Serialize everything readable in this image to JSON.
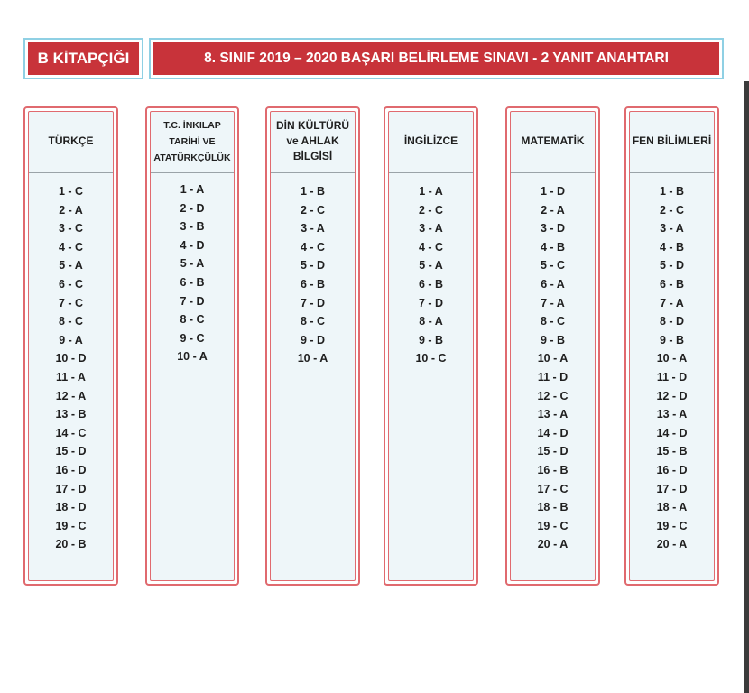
{
  "booklet_label": "B KİTAPÇIĞI",
  "exam_title": "8. SINIF 2019 – 2020  BAŞARI BELİRLEME SINAVI - 2 YANIT ANAHTARI",
  "colors": {
    "header_red": "#c8333a",
    "header_outline": "#8fd0e4",
    "column_border": "#e06a6f",
    "column_fill": "#eef6f9"
  },
  "subjects": [
    {
      "name": "TÜRKÇE",
      "answers": [
        "1 - C",
        "2 - A",
        "3 - C",
        "4 - C",
        "5 - A",
        "6 - C",
        "7 - C",
        "8 - C",
        "9 - A",
        "10 - D",
        "11 - A",
        "12 - A",
        "13 - B",
        "14 - C",
        "15 - D",
        "16 - D",
        "17 - D",
        "18 - D",
        "19 - C",
        "20 - B"
      ]
    },
    {
      "name": "T.C. İNKILAP TARİHİ VE ATATÜRKÇÜLÜK",
      "answers": [
        "1 - A",
        "2 - D",
        "3 - B",
        "4 - D",
        "5 - A",
        "6 - B",
        "7 - D",
        "8 - C",
        "9 - C",
        "10 - A"
      ]
    },
    {
      "name": "DİN KÜLTÜRÜ ve AHLAK BİLGİSİ",
      "answers": [
        "1 - B",
        "2 - C",
        "3 - A",
        "4 - C",
        "5 - D",
        "6 - B",
        "7 - D",
        "8 - C",
        "9 - D",
        "10 - A"
      ]
    },
    {
      "name": "İNGİLİZCE",
      "answers": [
        "1 - A",
        "2 - C",
        "3 - A",
        "4 - C",
        "5 - A",
        "6 - B",
        "7 - D",
        "8 - A",
        "9 - B",
        "10 - C"
      ]
    },
    {
      "name": "MATEMATİK",
      "answers": [
        "1 - D",
        "2 - A",
        "3 - D",
        "4 - B",
        "5 - C",
        "6 - A",
        "7 - A",
        "8 - C",
        "9 - B",
        "10 - A",
        "11 - D",
        "12 - C",
        "13 - A",
        "14 - D",
        "15 - D",
        "16 - B",
        "17 - C",
        "18 - B",
        "19 - C",
        "20 - A"
      ]
    },
    {
      "name": "FEN BİLİMLERİ",
      "answers": [
        "1 - B",
        "2 - C",
        "3 - A",
        "4 - B",
        "5 - D",
        "6 - B",
        "7 - A",
        "8 - D",
        "9 - B",
        "10 - A",
        "11 - D",
        "12 - D",
        "13 - A",
        "14 - D",
        "15 - B",
        "16 - D",
        "17 - D",
        "18 - A",
        "19 - C",
        "20 - A"
      ]
    }
  ]
}
